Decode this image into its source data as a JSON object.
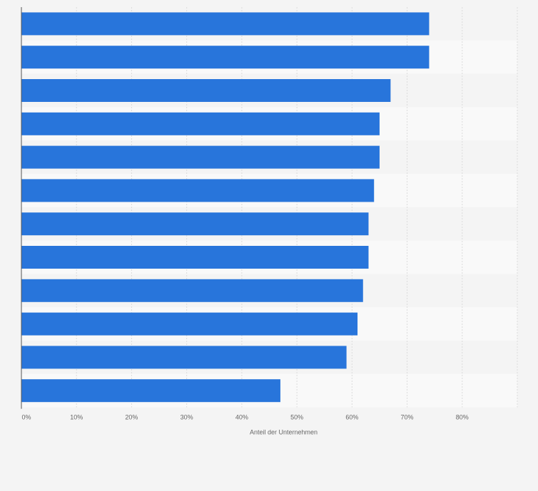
{
  "chart_data": {
    "type": "bar",
    "orientation": "horizontal",
    "title": "",
    "xlabel": "Anteil der Unternehmen",
    "ylabel": "",
    "categories": [
      "",
      "",
      "",
      "",
      "",
      "",
      "",
      "",
      "",
      "",
      "",
      ""
    ],
    "values": [
      74,
      74,
      67,
      65,
      65,
      64,
      63,
      63,
      62,
      61,
      59,
      47
    ],
    "xlim": [
      0,
      90
    ],
    "xticks": [
      0,
      10,
      20,
      30,
      40,
      50,
      60,
      70,
      80
    ],
    "xtick_labels": [
      "0%",
      "10%",
      "20%",
      "30%",
      "40%",
      "50%",
      "60%",
      "70%",
      "80%"
    ],
    "grid": true,
    "legend": "none",
    "colors": {
      "bar": "#2875db",
      "band_light": "#f9f9f9",
      "band_dark": "#f4f4f4",
      "grid": "#dcdcdc",
      "axis": "#555555",
      "text": "#666666"
    }
  }
}
